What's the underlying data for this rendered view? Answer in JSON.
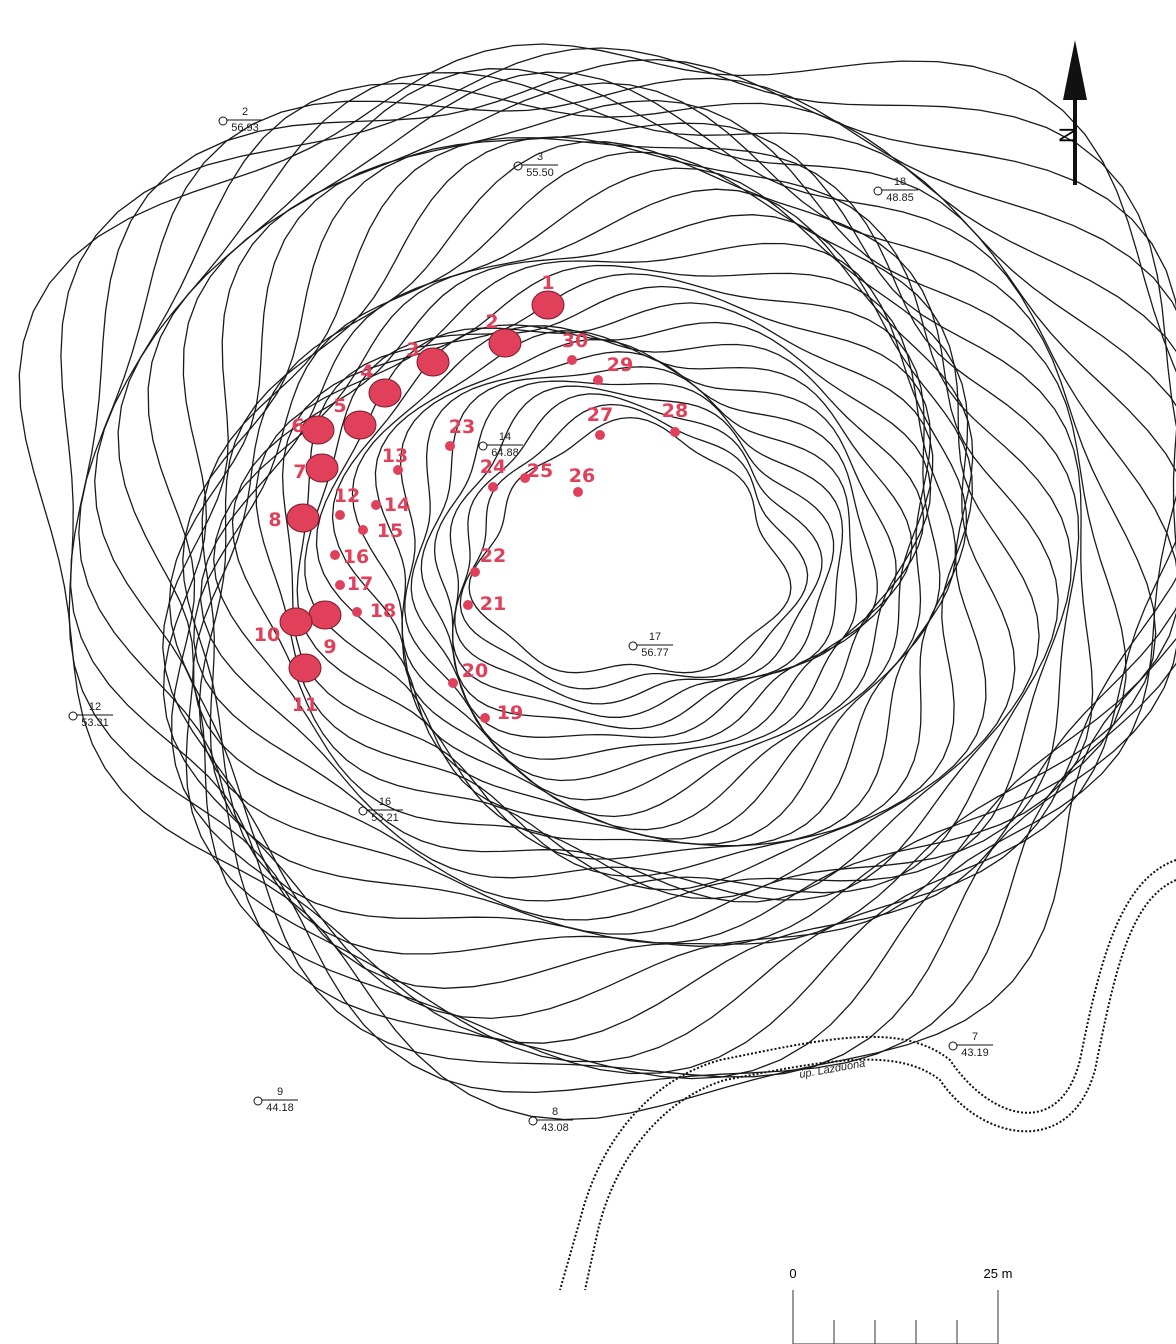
{
  "map": {
    "north": "N",
    "scale": {
      "start": "0",
      "end": "25 m"
    },
    "stream": "úp. Lazduona",
    "markers": [
      {
        "label": "1"
      },
      {
        "label": "2"
      },
      {
        "label": "3"
      },
      {
        "label": "4"
      },
      {
        "label": "5"
      },
      {
        "label": "6"
      },
      {
        "label": "7"
      },
      {
        "label": "8"
      },
      {
        "label": "9"
      },
      {
        "label": "10"
      },
      {
        "label": "11"
      },
      {
        "label": "12"
      },
      {
        "label": "13"
      },
      {
        "label": "14"
      },
      {
        "label": "15"
      },
      {
        "label": "16"
      },
      {
        "label": "17"
      },
      {
        "label": "18"
      },
      {
        "label": "19"
      },
      {
        "label": "20"
      },
      {
        "label": "21"
      },
      {
        "label": "22"
      },
      {
        "label": "23"
      },
      {
        "label": "24"
      },
      {
        "label": "25"
      },
      {
        "label": "26"
      },
      {
        "label": "27"
      },
      {
        "label": "28"
      },
      {
        "label": "29"
      },
      {
        "label": "30"
      }
    ],
    "benchmarks": [
      {
        "id": "2",
        "elevation": "56.93"
      },
      {
        "id": "3",
        "elevation": "55.50"
      },
      {
        "id": "7",
        "elevation": "43.19"
      },
      {
        "id": "8",
        "elevation": "43.08"
      },
      {
        "id": "9",
        "elevation": "44.18"
      },
      {
        "id": "12",
        "elevation": "53.31"
      },
      {
        "id": "14",
        "elevation": "64.88"
      },
      {
        "id": "16",
        "elevation": "53.21"
      },
      {
        "id": "17",
        "elevation": "56.77"
      },
      {
        "id": "18",
        "elevation": "48.85"
      }
    ]
  }
}
